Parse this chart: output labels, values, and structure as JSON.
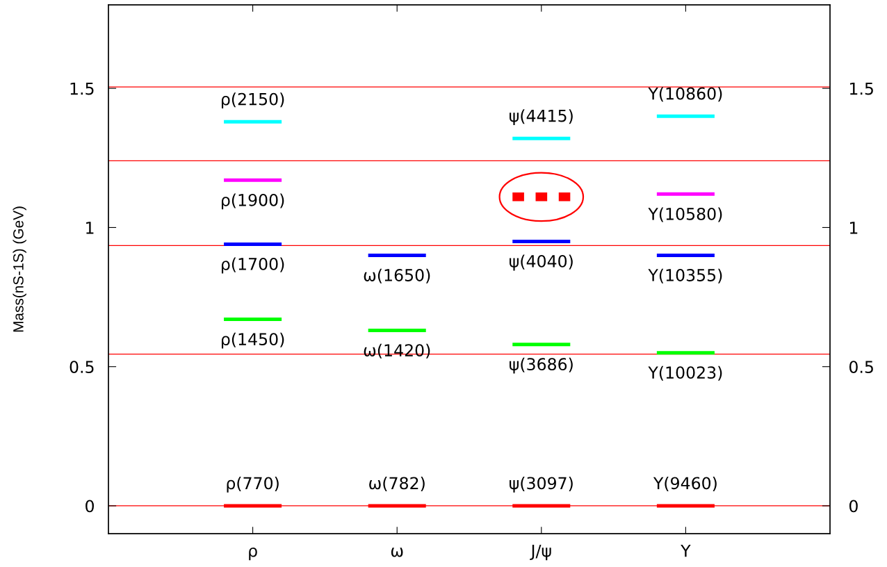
{
  "chart_data": {
    "type": "line",
    "ylabel": "Mass(nS-1S) (GeV)",
    "categories": [
      null,
      null,
      null,
      null,
      "ρ",
      null,
      null,
      null,
      null,
      "ω",
      null,
      null,
      null,
      null,
      "J/ψ",
      null,
      null,
      null,
      null,
      "Υ",
      null,
      null,
      null,
      null
    ],
    "ylim": [
      -0.1,
      1.8
    ],
    "yticks": [
      0,
      0.5,
      1,
      1.5
    ],
    "y2lim": [
      -0.1,
      1.8
    ],
    "y2ticks": [
      0,
      0.5,
      1,
      1.5
    ],
    "series": [
      {
        "color": "#ff0000",
        "values": [
          null,
          null,
          null,
          0,
          0,
          0,
          null,
          null,
          null,
          null,
          null,
          null,
          null,
          null,
          null,
          null,
          null,
          null,
          null,
          null,
          null,
          null,
          null,
          null
        ],
        "value_labels": [
          null,
          null,
          null,
          null,
          "ρ(770)",
          null,
          null,
          null,
          null,
          null,
          null,
          null,
          null,
          null,
          null,
          null,
          null,
          null,
          null,
          null,
          null,
          null,
          null,
          null
        ]
      },
      {
        "color": "#00ff00",
        "values": [
          null,
          null,
          null,
          0.67,
          0.67,
          0.67,
          null,
          null,
          null,
          null,
          null,
          null,
          null,
          null,
          null,
          null,
          null,
          null,
          null,
          null,
          null,
          null,
          null,
          null
        ],
        "value_labels": [
          null,
          null,
          null,
          null,
          "ρ(1450)",
          null,
          null,
          null,
          null,
          null,
          null,
          null,
          null,
          null,
          null,
          null,
          null,
          null,
          null,
          null,
          null,
          null,
          null,
          null
        ]
      },
      {
        "color": "#0000ff",
        "values": [
          null,
          null,
          null,
          0.94,
          0.94,
          0.94,
          null,
          null,
          null,
          null,
          null,
          null,
          null,
          null,
          null,
          null,
          null,
          null,
          null,
          null,
          null,
          null,
          null,
          null
        ],
        "value_labels": [
          null,
          null,
          null,
          null,
          "ρ(1700)",
          null,
          null,
          null,
          null,
          null,
          null,
          null,
          null,
          null,
          null,
          null,
          null,
          null,
          null,
          null,
          null,
          null,
          null,
          null
        ]
      },
      {
        "color": "#ff00ff",
        "values": [
          null,
          null,
          null,
          1.17,
          1.17,
          1.17,
          null,
          null,
          null,
          null,
          null,
          null,
          null,
          null,
          null,
          null,
          null,
          null,
          null,
          null,
          null,
          null,
          null,
          null
        ],
        "value_labels": [
          null,
          null,
          null,
          null,
          "ρ(1900)",
          null,
          null,
          null,
          null,
          null,
          null,
          null,
          null,
          null,
          null,
          null,
          null,
          null,
          null,
          null,
          null,
          null,
          null,
          null
        ]
      },
      {
        "color": "#00ffff",
        "values": [
          null,
          null,
          null,
          1.38,
          1.38,
          1.38,
          null,
          null,
          null,
          null,
          null,
          null,
          null,
          null,
          null,
          null,
          null,
          null,
          null,
          null,
          null,
          null,
          null,
          null
        ],
        "value_labels": [
          null,
          null,
          null,
          null,
          "ρ(2150)",
          null,
          null,
          null,
          null,
          null,
          null,
          null,
          null,
          null,
          null,
          null,
          null,
          null,
          null,
          null,
          null,
          null,
          null,
          null
        ]
      },
      {
        "color": "#ff0000",
        "values": [
          null,
          null,
          null,
          null,
          null,
          null,
          null,
          null,
          0,
          0,
          0,
          null,
          null,
          null,
          null,
          null,
          null,
          null,
          null,
          null,
          null,
          null,
          null,
          null
        ],
        "value_labels": [
          null,
          null,
          null,
          null,
          null,
          null,
          null,
          null,
          null,
          "ω(782)",
          null,
          null,
          null,
          null,
          null,
          null,
          null,
          null,
          null,
          null,
          null,
          null,
          null,
          null
        ]
      },
      {
        "color": "#00ff00",
        "values": [
          null,
          null,
          null,
          null,
          null,
          null,
          null,
          null,
          0.63,
          0.63,
          0.63,
          null,
          null,
          null,
          null,
          null,
          null,
          null,
          null,
          null,
          null,
          null,
          null,
          null
        ],
        "value_labels": [
          null,
          null,
          null,
          null,
          null,
          null,
          null,
          null,
          null,
          "ω(1420)",
          null,
          null,
          null,
          null,
          null,
          null,
          null,
          null,
          null,
          null,
          null,
          null,
          null,
          null
        ]
      },
      {
        "color": "#0000ff",
        "values": [
          null,
          null,
          null,
          null,
          null,
          null,
          null,
          null,
          0.9,
          0.9,
          0.9,
          null,
          null,
          null,
          null,
          null,
          null,
          null,
          null,
          null,
          null,
          null,
          null,
          null
        ],
        "value_labels": [
          null,
          null,
          null,
          null,
          null,
          null,
          null,
          null,
          null,
          "ω(1650)",
          null,
          null,
          null,
          null,
          null,
          null,
          null,
          null,
          null,
          null,
          null,
          null,
          null,
          null
        ]
      },
      {
        "color": "#ff0000",
        "values": [
          null,
          null,
          null,
          null,
          null,
          null,
          null,
          null,
          null,
          null,
          null,
          null,
          null,
          0,
          0,
          0,
          null,
          null,
          null,
          null,
          null,
          null,
          null,
          null
        ],
        "value_labels": [
          null,
          null,
          null,
          null,
          null,
          null,
          null,
          null,
          null,
          null,
          null,
          null,
          null,
          null,
          "ψ(3097)",
          null,
          null,
          null,
          null,
          null,
          null,
          null,
          null,
          null
        ]
      },
      {
        "color": "#00ff00",
        "values": [
          null,
          null,
          null,
          null,
          null,
          null,
          null,
          null,
          null,
          null,
          null,
          null,
          null,
          0.58,
          0.58,
          0.58,
          null,
          null,
          null,
          null,
          null,
          null,
          null,
          null
        ],
        "value_labels": [
          null,
          null,
          null,
          null,
          null,
          null,
          null,
          null,
          null,
          null,
          null,
          null,
          null,
          null,
          "ψ(3686)",
          null,
          null,
          null,
          null,
          null,
          null,
          null,
          null,
          null
        ]
      },
      {
        "color": "#0000ff",
        "values": [
          null,
          null,
          null,
          null,
          null,
          null,
          null,
          null,
          null,
          null,
          null,
          null,
          null,
          0.95,
          0.95,
          0.95,
          null,
          null,
          null,
          null,
          null,
          null,
          null,
          null
        ],
        "value_labels": [
          null,
          null,
          null,
          null,
          null,
          null,
          null,
          null,
          null,
          null,
          null,
          null,
          null,
          null,
          "ψ(4040)",
          null,
          null,
          null,
          null,
          null,
          null,
          null,
          null,
          null
        ]
      },
      {
        "color": "#ff0000",
        "line_style": "dashed",
        "values": [
          null,
          null,
          null,
          null,
          null,
          null,
          null,
          null,
          null,
          null,
          null,
          null,
          null,
          1.11,
          1.11,
          1.11,
          null,
          null,
          null,
          null,
          null,
          null,
          null,
          null
        ]
      },
      {
        "color": "#00ffff",
        "values": [
          null,
          null,
          null,
          null,
          null,
          null,
          null,
          null,
          null,
          null,
          null,
          null,
          null,
          1.32,
          1.32,
          1.32,
          null,
          null,
          null,
          null,
          null,
          null,
          null,
          null
        ],
        "value_labels": [
          null,
          null,
          null,
          null,
          null,
          null,
          null,
          null,
          null,
          null,
          null,
          null,
          null,
          null,
          "ψ(4415)",
          null,
          null,
          null,
          null,
          null,
          null,
          null,
          null,
          null
        ]
      },
      {
        "color": "#ff0000",
        "values": [
          null,
          null,
          null,
          null,
          null,
          null,
          null,
          null,
          null,
          null,
          null,
          null,
          null,
          null,
          null,
          null,
          null,
          null,
          0,
          0,
          0,
          null,
          null,
          null
        ],
        "value_labels": [
          null,
          null,
          null,
          null,
          null,
          null,
          null,
          null,
          null,
          null,
          null,
          null,
          null,
          null,
          null,
          null,
          null,
          null,
          null,
          "Υ(9460)",
          null,
          null,
          null,
          null
        ]
      },
      {
        "color": "#00ff00",
        "values": [
          null,
          null,
          null,
          null,
          null,
          null,
          null,
          null,
          null,
          null,
          null,
          null,
          null,
          null,
          null,
          null,
          null,
          null,
          0.55,
          0.55,
          0.55,
          null,
          null,
          null
        ],
        "value_labels": [
          null,
          null,
          null,
          null,
          null,
          null,
          null,
          null,
          null,
          null,
          null,
          null,
          null,
          null,
          null,
          null,
          null,
          null,
          null,
          "Υ(10023)",
          null,
          null,
          null,
          null
        ]
      },
      {
        "color": "#0000ff",
        "values": [
          null,
          null,
          null,
          null,
          null,
          null,
          null,
          null,
          null,
          null,
          null,
          null,
          null,
          null,
          null,
          null,
          null,
          null,
          0.9,
          0.9,
          0.9,
          null,
          null,
          null
        ],
        "value_labels": [
          null,
          null,
          null,
          null,
          null,
          null,
          null,
          null,
          null,
          null,
          null,
          null,
          null,
          null,
          null,
          null,
          null,
          null,
          null,
          "Υ(10355)",
          null,
          null,
          null,
          null
        ]
      },
      {
        "color": "#ff00ff",
        "values": [
          null,
          null,
          null,
          null,
          null,
          null,
          null,
          null,
          null,
          null,
          null,
          null,
          null,
          null,
          null,
          null,
          null,
          null,
          1.12,
          1.12,
          1.12,
          null,
          null,
          null
        ],
        "value_labels": [
          null,
          null,
          null,
          null,
          null,
          null,
          null,
          null,
          null,
          null,
          null,
          null,
          null,
          null,
          null,
          null,
          null,
          null,
          null,
          "Υ(10580)",
          null,
          null,
          null,
          null
        ]
      },
      {
        "color": "#00ffff",
        "values": [
          null,
          null,
          null,
          null,
          null,
          null,
          null,
          null,
          null,
          null,
          null,
          null,
          null,
          null,
          null,
          null,
          null,
          null,
          1.4,
          1.4,
          1.4,
          null,
          null,
          null
        ],
        "value_labels": [
          null,
          null,
          null,
          null,
          null,
          null,
          null,
          null,
          null,
          null,
          null,
          null,
          null,
          null,
          null,
          null,
          null,
          null,
          null,
          "Υ(10860)",
          null,
          null,
          null,
          null
        ]
      }
    ],
    "ref_lines": [
      {
        "axis": "y",
        "value": 0,
        "color": "#ff0000"
      },
      {
        "axis": "y",
        "value": 0.545,
        "color": "#ff0000"
      },
      {
        "axis": "y",
        "value": 0.935,
        "color": "#ff0000"
      },
      {
        "axis": "y",
        "value": 1.24,
        "color": "#ff0000"
      },
      {
        "axis": "y",
        "value": 1.505,
        "color": "#ff0000"
      }
    ]
  }
}
